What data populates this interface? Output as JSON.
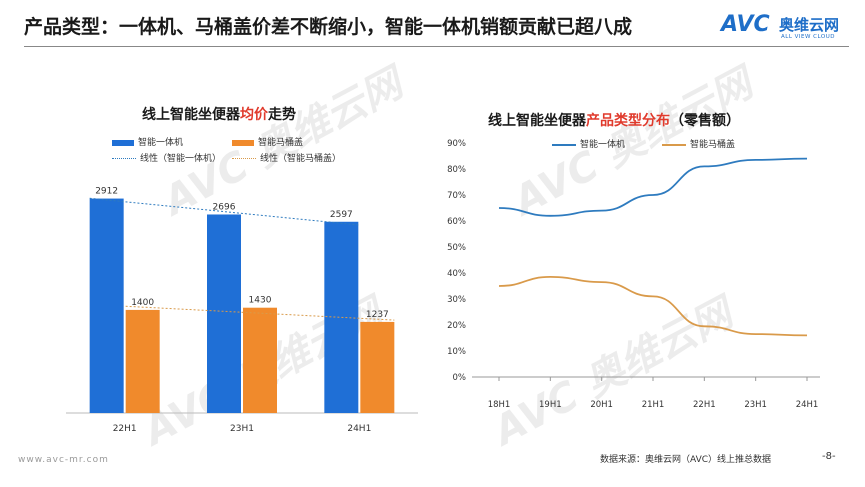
{
  "page": {
    "title": "产品类型：一体机、马桶盖价差不断缩小，智能一体机销额贡献已超八成",
    "logo_text": "AVC",
    "logo_cn": "奥维云网",
    "logo_sub": "ALL VIEW CLOUD",
    "watermark": "AVC 奥维云网",
    "footer_url": "www.avc-mr.com",
    "footer_source": "数据来源：奥维云网（AVC）线上推总数据",
    "page_number": "-8-"
  },
  "colors": {
    "blue": "#1f6fd6",
    "orange": "#f08a2c",
    "line_blue": "#2e7bbf",
    "line_orange": "#d99a4a"
  },
  "chart_data": [
    {
      "type": "bar",
      "title_parts": [
        "线上智能坐便器",
        "均价",
        "走势"
      ],
      "categories": [
        "22H1",
        "23H1",
        "24H1"
      ],
      "series": [
        {
          "name": "智能一体机",
          "values": [
            2912,
            2696,
            2597
          ]
        },
        {
          "name": "智能马桶盖",
          "values": [
            1400,
            1430,
            1237
          ]
        }
      ],
      "trendlines": [
        {
          "name": "线性（智能一体机）"
        },
        {
          "name": "线性（智能马桶盖）"
        }
      ],
      "ylim": [
        0,
        3300
      ],
      "legend": "top",
      "grid": false
    },
    {
      "type": "line",
      "title_parts": [
        "线上智能坐便器",
        "产品类型分布",
        "（零售额）"
      ],
      "categories": [
        "18H1",
        "19H1",
        "20H1",
        "21H1",
        "22H1",
        "23H1",
        "24H1"
      ],
      "series": [
        {
          "name": "智能一体机",
          "values": [
            65,
            62,
            64,
            70,
            81,
            83.5,
            84
          ]
        },
        {
          "name": "智能马桶盖",
          "values": [
            35,
            38.5,
            36.5,
            31,
            19.5,
            16.5,
            16
          ]
        }
      ],
      "ylim": [
        0,
        90
      ],
      "y_ticks": [
        "0%",
        "10%",
        "20%",
        "30%",
        "40%",
        "50%",
        "60%",
        "70%",
        "80%",
        "90%"
      ],
      "legend": "top",
      "grid": false
    }
  ]
}
